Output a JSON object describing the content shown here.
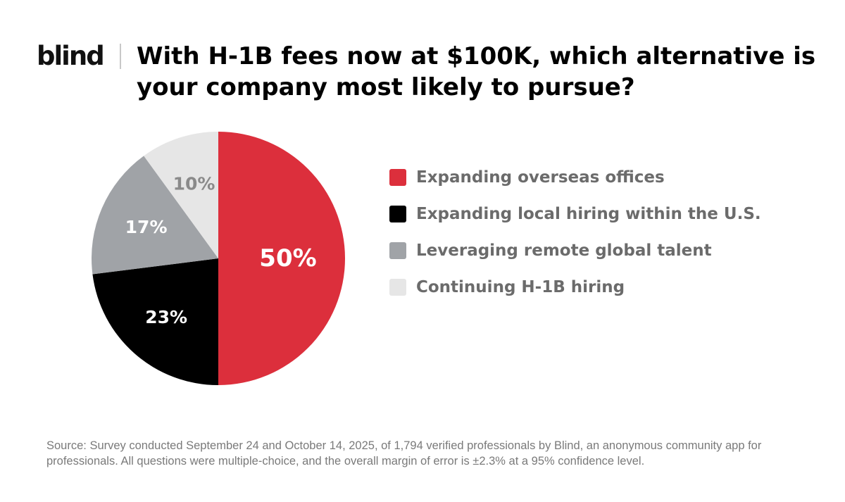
{
  "logo": "blind",
  "title": "With H-1B fees now at $100K, which alternative is your company most likely to pursue?",
  "source": "Source: Survey conducted September 24 and October 14, 2025, of 1,794 verified professionals by Blind, an anonymous community app for professionals. All questions were multiple-choice, and the overall margin of error is ±2.3% at a 95% confidence level.",
  "chart_data": {
    "type": "pie",
    "title": "With H-1B fees now at $100K, which alternative is your company most likely to pursue?",
    "legend_position": "right",
    "start_angle": "12 o'clock, clockwise",
    "categories": [
      "Expanding overseas offices",
      "Expanding local hiring within the U.S.",
      "Leveraging remote global talent",
      "Continuing H-1B hiring"
    ],
    "values": [
      50,
      23,
      17,
      10
    ],
    "data_labels": [
      "50%",
      "23%",
      "17%",
      "10%"
    ],
    "colors": [
      "#dc2f3c",
      "#000000",
      "#a0a3a7",
      "#e6e6e6"
    ],
    "label_colors": [
      "#ffffff",
      "#ffffff",
      "#ffffff",
      "#8a8a8a"
    ]
  }
}
